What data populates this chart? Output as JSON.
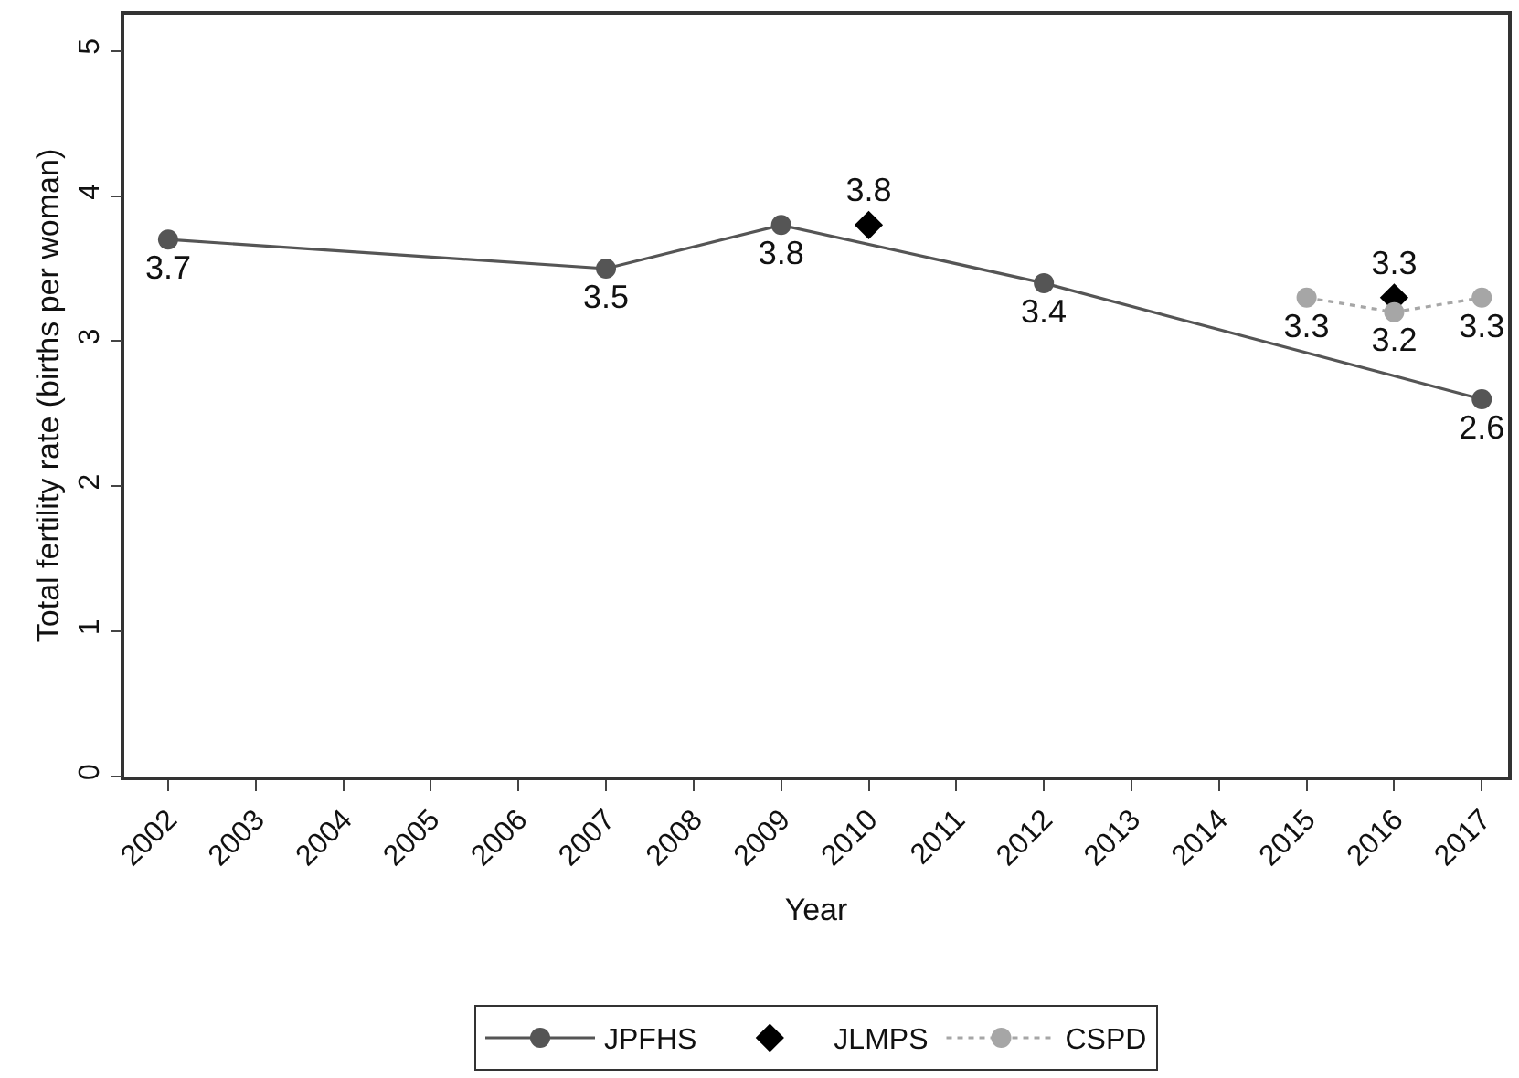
{
  "chart_data": {
    "type": "line",
    "xlabel": "Year",
    "ylabel": "Total fertility rate (births per woman)",
    "xlim": [
      2001.5,
      2017.3
    ],
    "xticks": [
      2002,
      2003,
      2004,
      2005,
      2006,
      2007,
      2008,
      2009,
      2010,
      2011,
      2012,
      2013,
      2014,
      2015,
      2016,
      2017
    ],
    "ylim": [
      0,
      5.25
    ],
    "yticks": [
      0,
      1,
      2,
      3,
      4,
      5
    ],
    "legend": "bottom",
    "data_labels": true,
    "series": [
      {
        "name": "JPFHS",
        "color": "#555555",
        "marker": "circle",
        "line_style": "solid",
        "x": [
          2002,
          2007,
          2009,
          2012,
          2017
        ],
        "values": [
          3.7,
          3.5,
          3.8,
          3.4,
          2.6
        ]
      },
      {
        "name": "JLMPS",
        "type": "scatter",
        "color": "#000000",
        "marker": "diamond",
        "x": [
          2010,
          2016
        ],
        "values": [
          3.8,
          3.3
        ]
      },
      {
        "name": "CSPD",
        "color": "#a6a6a6",
        "marker": "circle",
        "line_style": "dotted",
        "x": [
          2015,
          2016,
          2017
        ],
        "values": [
          3.3,
          3.2,
          3.3
        ]
      }
    ]
  }
}
